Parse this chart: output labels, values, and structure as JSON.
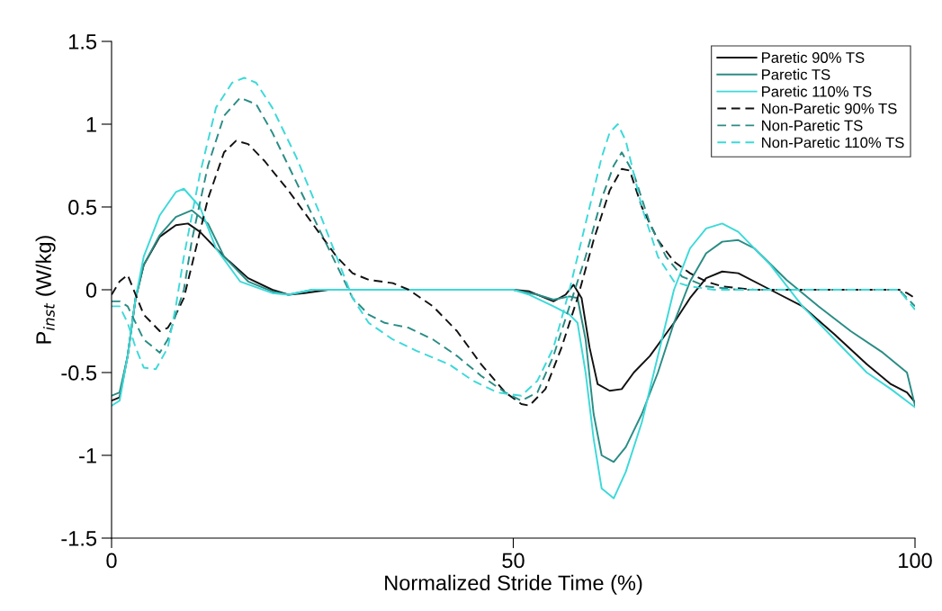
{
  "chart_data": {
    "type": "line",
    "xlabel": "Normalized Stride Time (%)",
    "ylabel": "P$_{inst}$ (W/kg)",
    "xlim": [
      0,
      100
    ],
    "xticks": [
      0,
      50,
      100
    ],
    "ylim": [
      -1.5,
      1.5
    ],
    "yticks": [
      -1.5,
      -1,
      -0.5,
      0,
      0.5,
      1,
      1.5
    ],
    "grid": false,
    "legend": "top right",
    "marker": "none",
    "series": [
      {
        "name": "Paretic 90% TS",
        "color": "#111111",
        "line_style": "solid",
        "x": [
          0,
          1,
          2,
          3,
          4,
          6,
          8,
          9.5,
          11,
          14,
          17,
          20,
          22,
          24,
          27,
          35,
          45,
          50,
          52,
          55,
          56.5,
          57.5,
          58.5,
          59.5,
          60.5,
          62,
          63.5,
          65,
          67,
          70,
          72,
          74,
          76,
          78,
          82,
          86,
          90,
          94,
          97,
          99,
          100
        ],
        "values": [
          -0.67,
          -0.65,
          -0.4,
          -0.05,
          0.15,
          0.32,
          0.39,
          0.4,
          0.35,
          0.2,
          0.07,
          0.0,
          -0.03,
          -0.02,
          0,
          0,
          0,
          0,
          -0.01,
          -0.07,
          -0.03,
          0.03,
          -0.05,
          -0.35,
          -0.57,
          -0.61,
          -0.6,
          -0.5,
          -0.4,
          -0.2,
          -0.05,
          0.07,
          0.11,
          0.1,
          0.0,
          -0.1,
          -0.27,
          -0.45,
          -0.57,
          -0.62,
          -0.68
        ]
      },
      {
        "name": "Paretic TS",
        "color": "#2a8c85",
        "line_style": "solid",
        "x": [
          0,
          1,
          2,
          3,
          4,
          6,
          8,
          10,
          12,
          14,
          17,
          20,
          22,
          25,
          45,
          50,
          53,
          55,
          57,
          58,
          59,
          60,
          61,
          62.5,
          64,
          66,
          68,
          70,
          72,
          74,
          76,
          78,
          80,
          84,
          88,
          92,
          96,
          99,
          100
        ],
        "values": [
          -0.64,
          -0.62,
          -0.4,
          -0.05,
          0.15,
          0.33,
          0.44,
          0.48,
          0.4,
          0.2,
          0.05,
          -0.01,
          -0.03,
          0,
          0,
          0,
          -0.03,
          -0.06,
          -0.04,
          -0.05,
          -0.3,
          -0.75,
          -1.0,
          -1.04,
          -0.95,
          -0.75,
          -0.5,
          -0.2,
          0.05,
          0.22,
          0.29,
          0.3,
          0.25,
          0.06,
          -0.1,
          -0.25,
          -0.38,
          -0.5,
          -0.7
        ]
      },
      {
        "name": "Paretic 110% TS",
        "color": "#3dd9d9",
        "line_style": "solid",
        "x": [
          0,
          1,
          2,
          3,
          4,
          6,
          8,
          9,
          11,
          13,
          16,
          20,
          22,
          25,
          50,
          52,
          55,
          57,
          58,
          59,
          60,
          61,
          62.5,
          64,
          66,
          68,
          70,
          72,
          74,
          76,
          78,
          82,
          86,
          90,
          94,
          97,
          100
        ],
        "values": [
          -0.7,
          -0.67,
          -0.4,
          -0.05,
          0.2,
          0.45,
          0.59,
          0.61,
          0.5,
          0.25,
          0.05,
          -0.02,
          -0.03,
          0,
          0,
          -0.03,
          -0.1,
          -0.15,
          -0.2,
          -0.5,
          -0.9,
          -1.2,
          -1.26,
          -1.1,
          -0.8,
          -0.4,
          0.0,
          0.25,
          0.37,
          0.4,
          0.35,
          0.15,
          -0.1,
          -0.3,
          -0.5,
          -0.6,
          -0.71
        ]
      },
      {
        "name": "Non-Paretic 90% TS",
        "color": "#111111",
        "line_style": "dashed",
        "x": [
          0,
          1,
          2,
          3,
          4,
          6,
          7,
          8,
          9,
          10,
          12,
          14,
          15.5,
          17,
          19,
          22,
          25,
          28,
          30,
          32,
          35,
          37,
          40,
          43,
          46,
          49,
          51,
          52,
          54,
          56,
          58,
          60,
          62,
          63.5,
          64.5,
          66,
          68,
          70,
          72,
          74,
          76,
          80,
          98,
          99,
          100
        ],
        "values": [
          -0.03,
          0.05,
          0.09,
          -0.03,
          -0.15,
          -0.25,
          -0.23,
          -0.15,
          -0.05,
          0.15,
          0.55,
          0.83,
          0.9,
          0.88,
          0.78,
          0.6,
          0.4,
          0.2,
          0.1,
          0.06,
          0.04,
          0.0,
          -0.1,
          -0.25,
          -0.45,
          -0.62,
          -0.69,
          -0.7,
          -0.6,
          -0.35,
          -0.05,
          0.3,
          0.6,
          0.73,
          0.72,
          0.5,
          0.3,
          0.17,
          0.1,
          0.05,
          0.02,
          0.0,
          0.0,
          -0.02,
          -0.05
        ]
      },
      {
        "name": "Non-Paretic TS",
        "color": "#2a8c85",
        "line_style": "dashed",
        "x": [
          0,
          1,
          2,
          3,
          4,
          6,
          7,
          8,
          9,
          10,
          12,
          14,
          16,
          18,
          20,
          23,
          26,
          28,
          30,
          32,
          34,
          37,
          40,
          43,
          46,
          49,
          51,
          53,
          55,
          57,
          59,
          61,
          62.5,
          63.5,
          65,
          67,
          69,
          71,
          74,
          78,
          98,
          100
        ],
        "values": [
          -0.07,
          -0.07,
          -0.1,
          -0.2,
          -0.3,
          -0.38,
          -0.3,
          -0.15,
          0.0,
          0.3,
          0.75,
          1.05,
          1.16,
          1.12,
          0.95,
          0.65,
          0.35,
          0.15,
          -0.05,
          -0.15,
          -0.2,
          -0.23,
          -0.3,
          -0.4,
          -0.52,
          -0.62,
          -0.67,
          -0.62,
          -0.4,
          -0.1,
          0.2,
          0.55,
          0.75,
          0.83,
          0.7,
          0.4,
          0.2,
          0.08,
          0.02,
          0.0,
          0,
          -0.1
        ]
      },
      {
        "name": "Non-Paretic 110% TS",
        "color": "#3dd9d9",
        "line_style": "dashed",
        "x": [
          0,
          1,
          2,
          3,
          4,
          5.5,
          7,
          8,
          9,
          11,
          13,
          15,
          16.5,
          18,
          20,
          23,
          26,
          28,
          30,
          32,
          35,
          38,
          42,
          45,
          48,
          51,
          53,
          55,
          57,
          59,
          61,
          62,
          63,
          64,
          66,
          68,
          70,
          72,
          75,
          98,
          100
        ],
        "values": [
          -0.1,
          -0.1,
          -0.2,
          -0.35,
          -0.47,
          -0.48,
          -0.35,
          -0.1,
          0.2,
          0.7,
          1.1,
          1.25,
          1.28,
          1.25,
          1.1,
          0.8,
          0.45,
          0.2,
          -0.05,
          -0.2,
          -0.3,
          -0.37,
          -0.45,
          -0.55,
          -0.62,
          -0.64,
          -0.55,
          -0.35,
          0.0,
          0.4,
          0.8,
          0.95,
          1.0,
          0.9,
          0.5,
          0.2,
          0.05,
          0.02,
          0,
          0,
          -0.12
        ]
      }
    ]
  }
}
